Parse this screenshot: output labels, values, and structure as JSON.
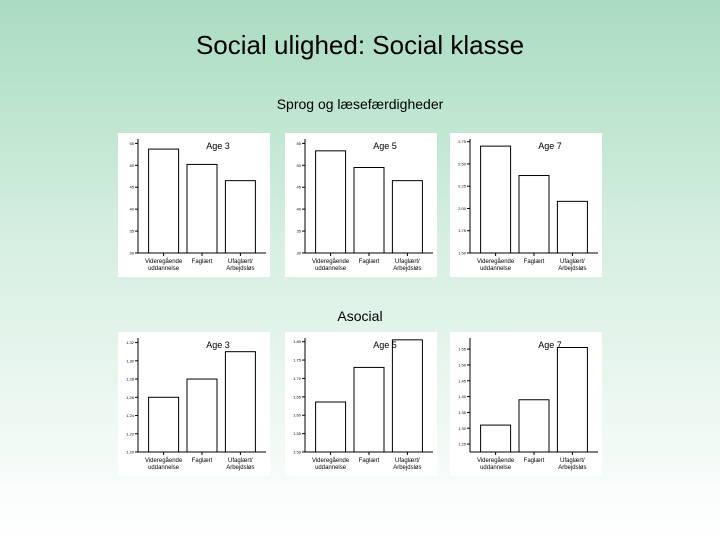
{
  "title": "Social ulighed: Social klasse",
  "subtitle": "Sprog og læsefærdigheder",
  "section_label": "Asocial",
  "chart_data": [
    {
      "type": "bar",
      "title": "Age 3",
      "categories": [
        "Videregående uddannelse",
        "Faglært",
        "Ufaglært/ Arbejdsløs"
      ],
      "values": [
        53.7,
        50.2,
        46.5
      ],
      "ylim": [
        30,
        56
      ],
      "yticks": [
        "30",
        "35",
        "40",
        "45",
        "50",
        "55"
      ],
      "ytick_values": [
        30,
        35,
        40,
        45,
        50,
        55
      ]
    },
    {
      "type": "bar",
      "title": "Age 5",
      "categories": [
        "Videregående uddannelse",
        "Faglært",
        "Ufaglært/ Arbejdsløs"
      ],
      "values": [
        53.3,
        49.5,
        46.5
      ],
      "ylim": [
        30,
        56
      ],
      "yticks": [
        "30",
        "35",
        "40",
        "45",
        "50",
        "55"
      ],
      "ytick_values": [
        30,
        35,
        40,
        45,
        50,
        55
      ]
    },
    {
      "type": "bar",
      "title": "Age 7",
      "categories": [
        "Videregående uddannelse",
        "Faglært",
        "Ufaglært/ Arbejdsløs"
      ],
      "values": [
        2.7,
        2.37,
        2.08
      ],
      "ylim": [
        1.5,
        2.78
      ],
      "yticks": [
        "1.50",
        "1.75",
        "2.00",
        "2.25",
        "2.50",
        "2.75"
      ],
      "ytick_values": [
        1.5,
        1.75,
        2.0,
        2.25,
        2.5,
        2.75
      ]
    },
    {
      "type": "bar",
      "title": "Age 3",
      "categories": [
        "Videregående uddannelse",
        "Faglært",
        "Ufaglært/ Arbejdsløs"
      ],
      "values": [
        1.26,
        1.28,
        1.31
      ],
      "ylim": [
        1.2,
        1.325
      ],
      "yticks": [
        "1.20",
        "1.22",
        "1.24",
        "1.26",
        "1.28",
        "1.30",
        "1.32"
      ],
      "ytick_values": [
        1.2,
        1.22,
        1.24,
        1.26,
        1.28,
        1.3,
        1.32
      ]
    },
    {
      "type": "bar",
      "title": "Age 5",
      "categories": [
        "Videregående uddannelse",
        "Faglært",
        "Ufaglært/ Arbejdsløs"
      ],
      "values": [
        1.636,
        1.73,
        1.805
      ],
      "ylim": [
        1.5,
        1.81
      ],
      "yticks": [
        "1.50",
        "1.55",
        "1.60",
        "1.65",
        "1.70",
        "1.75",
        "1.80"
      ],
      "ytick_values": [
        1.5,
        1.55,
        1.6,
        1.65,
        1.7,
        1.75,
        1.8
      ]
    },
    {
      "type": "bar",
      "title": "Age 7",
      "categories": [
        "Videregående uddannelse",
        "Faglært",
        "Ufaglært/ Arbejdsløs"
      ],
      "values": [
        1.31,
        1.39,
        1.555
      ],
      "ylim": [
        1.225,
        1.585
      ],
      "yticks": [
        "1.25",
        "1.30",
        "1.35",
        "1.40",
        "1.45",
        "1.50",
        "1.55"
      ],
      "ytick_values": [
        1.25,
        1.3,
        1.35,
        1.4,
        1.45,
        1.5,
        1.55
      ]
    }
  ]
}
